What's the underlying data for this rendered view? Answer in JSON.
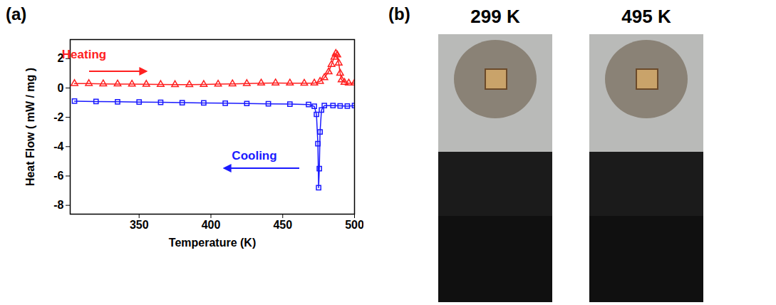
{
  "chart_data": {
    "type": "line",
    "panel": "(a)",
    "x_label": "Temperature (K)",
    "y_label": "Heat Flow ( mW / mg )",
    "xlim": [
      302,
      500
    ],
    "ylim": [
      -8.6,
      3.3
    ],
    "xticks": [
      350,
      400,
      450,
      500
    ],
    "yticks": [
      -8,
      -6,
      -4,
      -2,
      0,
      2
    ],
    "series": [
      {
        "name": "Heating",
        "color": "#ff2020",
        "marker": "triangle",
        "x": [
          305,
          315,
          325,
          335,
          345,
          355,
          365,
          375,
          385,
          395,
          405,
          415,
          425,
          435,
          445,
          455,
          465,
          472,
          476,
          479,
          482,
          484,
          486,
          487,
          488,
          489,
          490,
          491,
          493,
          496,
          500
        ],
        "values": [
          0.3,
          0.3,
          0.28,
          0.27,
          0.26,
          0.25,
          0.24,
          0.23,
          0.23,
          0.24,
          0.26,
          0.28,
          0.3,
          0.33,
          0.34,
          0.33,
          0.32,
          0.33,
          0.45,
          0.7,
          1.1,
          1.6,
          2.1,
          2.35,
          2.25,
          1.7,
          1.0,
          0.55,
          0.38,
          0.33,
          0.33
        ]
      },
      {
        "name": "Cooling",
        "color": "#1a1aff",
        "marker": "square",
        "x": [
          305,
          320,
          335,
          350,
          365,
          380,
          395,
          410,
          425,
          440,
          455,
          468,
          472,
          473.5,
          474.5,
          475,
          475.5,
          476,
          477,
          479,
          485,
          490,
          495,
          500
        ],
        "values": [
          -0.9,
          -0.92,
          -0.94,
          -0.96,
          -0.98,
          -1.0,
          -1.02,
          -1.04,
          -1.06,
          -1.08,
          -1.1,
          -1.13,
          -1.25,
          -1.8,
          -3.8,
          -6.8,
          -5.5,
          -3.0,
          -1.5,
          -1.2,
          -1.2,
          -1.22,
          -1.24,
          -1.2
        ]
      }
    ]
  },
  "photo_panel": {
    "panel": "(b)",
    "photos": [
      {
        "title": "299 K"
      },
      {
        "title": "495 K"
      }
    ]
  }
}
